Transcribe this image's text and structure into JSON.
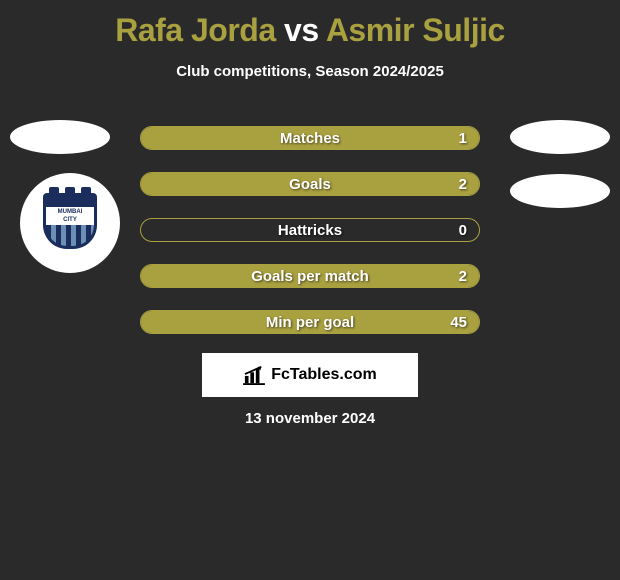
{
  "title": {
    "player1": "Rafa Jorda",
    "vs": " vs ",
    "player2": "Asmir Suljic",
    "player1_color": "#a9a040",
    "player2_color": "#a9a040"
  },
  "subtitle": "Club competitions, Season 2024/2025",
  "club_badge": {
    "line1": "MUMBAI",
    "line2": "CITY"
  },
  "stats": [
    {
      "label": "Matches",
      "value": "1",
      "fill_pct": 100,
      "fill_color": "#a9a040",
      "border_color": "#a9a040"
    },
    {
      "label": "Goals",
      "value": "2",
      "fill_pct": 100,
      "fill_color": "#a9a040",
      "border_color": "#a9a040"
    },
    {
      "label": "Hattricks",
      "value": "0",
      "fill_pct": 0,
      "fill_color": "#a9a040",
      "border_color": "#a9a040"
    },
    {
      "label": "Goals per match",
      "value": "2",
      "fill_pct": 100,
      "fill_color": "#a9a040",
      "border_color": "#a9a040"
    },
    {
      "label": "Min per goal",
      "value": "45",
      "fill_pct": 100,
      "fill_color": "#a9a040",
      "border_color": "#a9a040"
    }
  ],
  "brand": "FcTables.com",
  "date": "13 november 2024",
  "colors": {
    "background": "#2a2a2a",
    "avatar_bg": "#ffffff",
    "text": "#ffffff"
  }
}
